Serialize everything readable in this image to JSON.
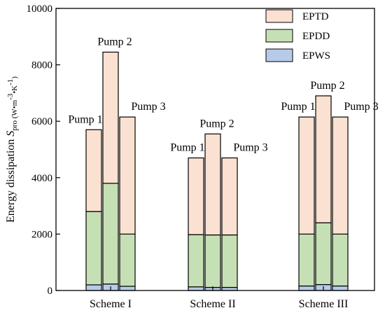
{
  "chart_data": {
    "type": "bar",
    "stacked": true,
    "ylabel": {
      "text": "Energy dissipation ",
      "symbol": "S",
      "subscript": "pro",
      "unit_open": " (W•m",
      "exp1": "-3",
      "unit_mid": "•K",
      "exp2": "-1",
      "unit_close": ")"
    },
    "ylim": [
      0,
      10000
    ],
    "yticks": [
      0,
      2000,
      4000,
      6000,
      8000,
      10000
    ],
    "categories": [
      "Scheme I",
      "Scheme II",
      "Scheme III"
    ],
    "bars": [
      {
        "group": "Scheme I",
        "label": "Pump 1",
        "EPWS": 200,
        "EPDD": 2600,
        "EPTD": 2900
      },
      {
        "group": "Scheme I",
        "label": "Pump 2",
        "EPWS": 230,
        "EPDD": 3570,
        "EPTD": 4650
      },
      {
        "group": "Scheme I",
        "label": "Pump 3",
        "EPWS": 150,
        "EPDD": 1850,
        "EPTD": 4150
      },
      {
        "group": "Scheme II",
        "label": "Pump 1",
        "EPWS": 130,
        "EPDD": 1850,
        "EPTD": 2720
      },
      {
        "group": "Scheme II",
        "label": "Pump 2",
        "EPWS": 110,
        "EPDD": 1860,
        "EPTD": 3580
      },
      {
        "group": "Scheme II",
        "label": "Pump 3",
        "EPWS": 110,
        "EPDD": 1860,
        "EPTD": 2730
      },
      {
        "group": "Scheme III",
        "label": "Pump 1",
        "EPWS": 160,
        "EPDD": 1840,
        "EPTD": 4150
      },
      {
        "group": "Scheme III",
        "label": "Pump 2",
        "EPWS": 210,
        "EPDD": 2190,
        "EPTD": 4500
      },
      {
        "group": "Scheme III",
        "label": "Pump 3",
        "EPWS": 160,
        "EPDD": 1840,
        "EPTD": 4150
      }
    ],
    "series": [
      {
        "name": "EPTD",
        "color": "#fbe1d1"
      },
      {
        "name": "EPDD",
        "color": "#c6e0b5"
      },
      {
        "name": "EPWS",
        "color": "#b7cbe9"
      }
    ],
    "legend_position": "top-right"
  }
}
